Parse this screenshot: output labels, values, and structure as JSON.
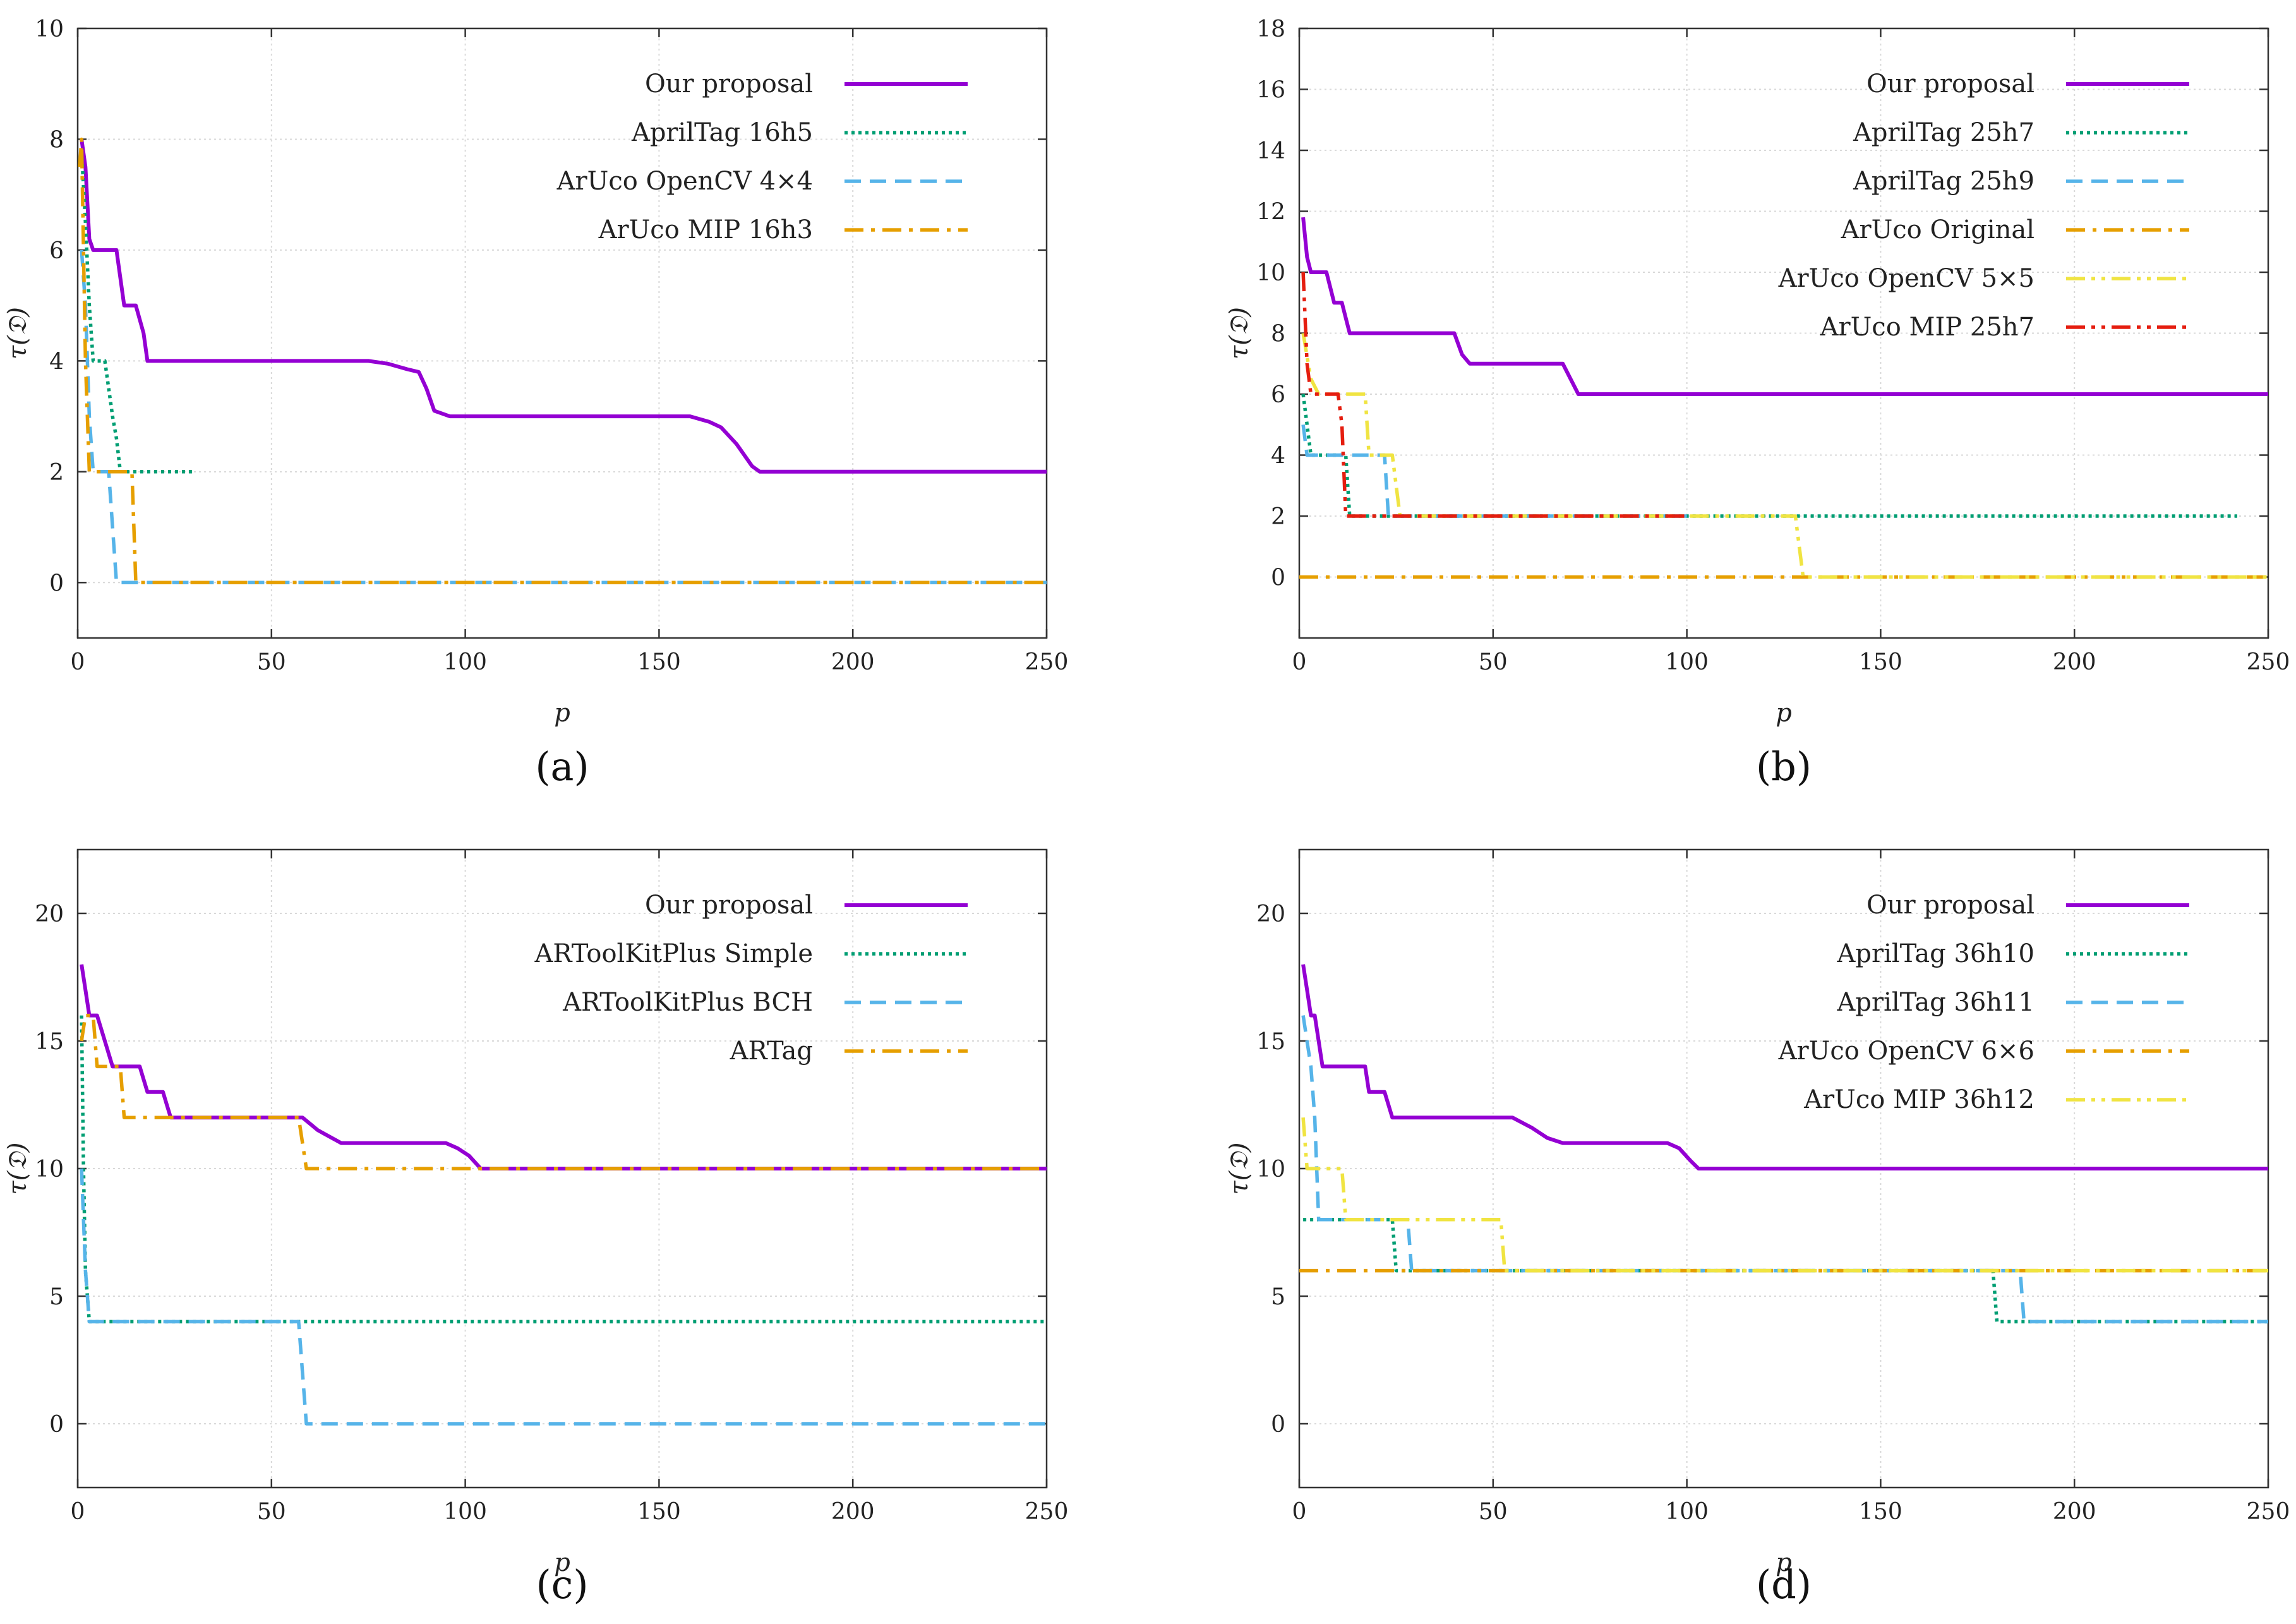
{
  "chart_data": [
    {
      "type": "line",
      "panel_label": "(a)",
      "xlabel": "p",
      "ylabel": "τ(𝔇)",
      "xlim": [
        0,
        250
      ],
      "ylim": [
        -1,
        10
      ],
      "xticks": [
        0,
        50,
        100,
        150,
        200,
        250
      ],
      "yticks": [
        0,
        2,
        4,
        6,
        8,
        10
      ],
      "grid": true,
      "legend_position": "top-right",
      "series": [
        {
          "name": "Our proposal",
          "color": "#9400d3",
          "dash": "solid",
          "points": [
            [
              1,
              8
            ],
            [
              2,
              7.5
            ],
            [
              3,
              6.2
            ],
            [
              4,
              6
            ],
            [
              10,
              6
            ],
            [
              11,
              5.5
            ],
            [
              12,
              5
            ],
            [
              15,
              5
            ],
            [
              17,
              4.5
            ],
            [
              18,
              4
            ],
            [
              75,
              4
            ],
            [
              80,
              3.95
            ],
            [
              85,
              3.85
            ],
            [
              88,
              3.8
            ],
            [
              90,
              3.5
            ],
            [
              92,
              3.1
            ],
            [
              96,
              3
            ],
            [
              158,
              3
            ],
            [
              163,
              2.9
            ],
            [
              166,
              2.8
            ],
            [
              170,
              2.5
            ],
            [
              174,
              2.1
            ],
            [
              176,
              2
            ],
            [
              250,
              2
            ]
          ]
        },
        {
          "name": "AprilTag 16h5",
          "color": "#009e73",
          "dash": "dotted",
          "points": [
            [
              1,
              7.8
            ],
            [
              2,
              6.5
            ],
            [
              3,
              5
            ],
            [
              4,
              4
            ],
            [
              7,
              4
            ],
            [
              8,
              3.5
            ],
            [
              9,
              3
            ],
            [
              10,
              2.6
            ],
            [
              11,
              2
            ],
            [
              30,
              2
            ]
          ]
        },
        {
          "name": "ArUco OpenCV 4×4",
          "color": "#56b4e9",
          "dash": "dashed",
          "points": [
            [
              1,
              6
            ],
            [
              2,
              5
            ],
            [
              3,
              3
            ],
            [
              4,
              2
            ],
            [
              8,
              2
            ],
            [
              9,
              1
            ],
            [
              10,
              0
            ],
            [
              250,
              0
            ]
          ]
        },
        {
          "name": "ArUco MIP 16h3",
          "color": "#e69f00",
          "dash": "dashdot",
          "points": [
            [
              0.5,
              7.5
            ],
            [
              1,
              8
            ],
            [
              2,
              4
            ],
            [
              3,
              2
            ],
            [
              14,
              2
            ],
            [
              15,
              0
            ],
            [
              250,
              0
            ]
          ]
        }
      ]
    },
    {
      "type": "line",
      "panel_label": "(b)",
      "xlabel": "p",
      "ylabel": "τ(𝔇)",
      "xlim": [
        0,
        250
      ],
      "ylim": [
        -2,
        18
      ],
      "xticks": [
        0,
        50,
        100,
        150,
        200,
        250
      ],
      "yticks": [
        0,
        2,
        4,
        6,
        8,
        10,
        12,
        14,
        16,
        18
      ],
      "grid": true,
      "legend_position": "top-right",
      "series": [
        {
          "name": "Our proposal",
          "color": "#9400d3",
          "dash": "solid",
          "points": [
            [
              1,
              11.8
            ],
            [
              2,
              10.5
            ],
            [
              3,
              10
            ],
            [
              7,
              10
            ],
            [
              8,
              9.5
            ],
            [
              9,
              9
            ],
            [
              11,
              9
            ],
            [
              12,
              8.5
            ],
            [
              13,
              8
            ],
            [
              40,
              8
            ],
            [
              42,
              7.3
            ],
            [
              44,
              7
            ],
            [
              68,
              7
            ],
            [
              70,
              6.5
            ],
            [
              72,
              6
            ],
            [
              250,
              6
            ]
          ]
        },
        {
          "name": "AprilTag 25h7",
          "color": "#009e73",
          "dash": "dotted",
          "points": [
            [
              1,
              6
            ],
            [
              2,
              5
            ],
            [
              3,
              4
            ],
            [
              12,
              4
            ],
            [
              13,
              2
            ],
            [
              242,
              2
            ]
          ]
        },
        {
          "name": "AprilTag 25h9",
          "color": "#56b4e9",
          "dash": "dashed",
          "points": [
            [
              1,
              5
            ],
            [
              2,
              4
            ],
            [
              22,
              4
            ],
            [
              23,
              2
            ],
            [
              100,
              2
            ]
          ]
        },
        {
          "name": "ArUco Original",
          "color": "#e69f00",
          "dash": "dashdot",
          "points": [
            [
              0,
              0
            ],
            [
              250,
              0
            ]
          ]
        },
        {
          "name": "ArUco OpenCV 5×5",
          "color": "#f0e442",
          "dash": "dashdotdot",
          "points": [
            [
              1,
              8
            ],
            [
              3,
              6.5
            ],
            [
              5,
              6
            ],
            [
              17,
              6
            ],
            [
              18,
              4
            ],
            [
              24,
              4
            ],
            [
              26,
              2
            ],
            [
              128,
              2
            ],
            [
              130,
              0
            ],
            [
              250,
              0
            ]
          ]
        },
        {
          "name": "ArUco MIP 25h7",
          "color": "#e51e10",
          "dash": "dashdotdot",
          "points": [
            [
              1,
              10
            ],
            [
              2,
              7
            ],
            [
              3,
              6
            ],
            [
              10,
              6
            ],
            [
              11,
              5
            ],
            [
              12,
              2
            ],
            [
              100,
              2
            ]
          ]
        }
      ]
    },
    {
      "type": "line",
      "panel_label": "(c)",
      "xlabel": "p",
      "ylabel": "τ(𝔇)",
      "xlim": [
        0,
        250
      ],
      "ylim": [
        -2.5,
        22.5
      ],
      "xticks": [
        0,
        50,
        100,
        150,
        200,
        250
      ],
      "yticks": [
        0,
        5,
        10,
        15,
        20
      ],
      "grid": true,
      "legend_position": "top-right",
      "series": [
        {
          "name": "Our proposal",
          "color": "#9400d3",
          "dash": "solid",
          "points": [
            [
              1,
              18
            ],
            [
              2,
              17
            ],
            [
              3,
              16
            ],
            [
              5,
              16
            ],
            [
              7,
              15
            ],
            [
              9,
              14
            ],
            [
              16,
              14
            ],
            [
              17,
              13.5
            ],
            [
              18,
              13
            ],
            [
              22,
              13
            ],
            [
              23,
              12.5
            ],
            [
              24,
              12
            ],
            [
              58,
              12
            ],
            [
              62,
              11.5
            ],
            [
              68,
              11
            ],
            [
              95,
              11
            ],
            [
              98,
              10.8
            ],
            [
              101,
              10.5
            ],
            [
              104,
              10
            ],
            [
              250,
              10
            ]
          ]
        },
        {
          "name": "ARToolKitPlus Simple",
          "color": "#009e73",
          "dash": "dotted",
          "points": [
            [
              1,
              16
            ],
            [
              1.5,
              10
            ],
            [
              2,
              6
            ],
            [
              3,
              4
            ],
            [
              250,
              4
            ]
          ]
        },
        {
          "name": "ARToolKitPlus BCH",
          "color": "#56b4e9",
          "dash": "dashed",
          "points": [
            [
              1,
              10
            ],
            [
              2,
              6
            ],
            [
              3,
              4
            ],
            [
              57,
              4
            ],
            [
              59,
              0
            ],
            [
              250,
              0
            ]
          ]
        },
        {
          "name": "ARTag",
          "color": "#e69f00",
          "dash": "dashdot",
          "points": [
            [
              1,
              15
            ],
            [
              2,
              16
            ],
            [
              4,
              16
            ],
            [
              5,
              14
            ],
            [
              11,
              14
            ],
            [
              12,
              12
            ],
            [
              57,
              12
            ],
            [
              59,
              10
            ],
            [
              250,
              10
            ]
          ]
        }
      ]
    },
    {
      "type": "line",
      "panel_label": "(d)",
      "xlabel": "p",
      "ylabel": "τ(𝔇)",
      "xlim": [
        0,
        250
      ],
      "ylim": [
        -2.5,
        22.5
      ],
      "xticks": [
        0,
        50,
        100,
        150,
        200,
        250
      ],
      "yticks": [
        0,
        5,
        10,
        15,
        20
      ],
      "grid": true,
      "legend_position": "top-right",
      "series": [
        {
          "name": "Our proposal",
          "color": "#9400d3",
          "dash": "solid",
          "points": [
            [
              1,
              18
            ],
            [
              2,
              17
            ],
            [
              3,
              16
            ],
            [
              4,
              16
            ],
            [
              6,
              14
            ],
            [
              17,
              14
            ],
            [
              18,
              13
            ],
            [
              22,
              13
            ],
            [
              24,
              12
            ],
            [
              55,
              12
            ],
            [
              60,
              11.6
            ],
            [
              64,
              11.2
            ],
            [
              68,
              11
            ],
            [
              95,
              11
            ],
            [
              98,
              10.8
            ],
            [
              101,
              10.3
            ],
            [
              103,
              10
            ],
            [
              250,
              10
            ]
          ]
        },
        {
          "name": "AprilTag 36h10",
          "color": "#009e73",
          "dash": "dotted",
          "points": [
            [
              1,
              8
            ],
            [
              24,
              8
            ],
            [
              25,
              6
            ],
            [
              179,
              6
            ],
            [
              180,
              4
            ],
            [
              250,
              4
            ]
          ]
        },
        {
          "name": "AprilTag 36h11",
          "color": "#56b4e9",
          "dash": "dashed",
          "points": [
            [
              1,
              16
            ],
            [
              3,
              14
            ],
            [
              4,
              12
            ],
            [
              5,
              8
            ],
            [
              28,
              8
            ],
            [
              29,
              6
            ],
            [
              186,
              6
            ],
            [
              187,
              4
            ],
            [
              250,
              4
            ]
          ]
        },
        {
          "name": "ArUco OpenCV 6×6",
          "color": "#e69f00",
          "dash": "dashdot",
          "points": [
            [
              0,
              6
            ],
            [
              250,
              6
            ]
          ]
        },
        {
          "name": "ArUco MIP 36h12",
          "color": "#f0e442",
          "dash": "dashdotdot",
          "points": [
            [
              1,
              12
            ],
            [
              2,
              10
            ],
            [
              11,
              10
            ],
            [
              12,
              8
            ],
            [
              52,
              8
            ],
            [
              53,
              6
            ],
            [
              250,
              6
            ]
          ]
        }
      ]
    }
  ]
}
